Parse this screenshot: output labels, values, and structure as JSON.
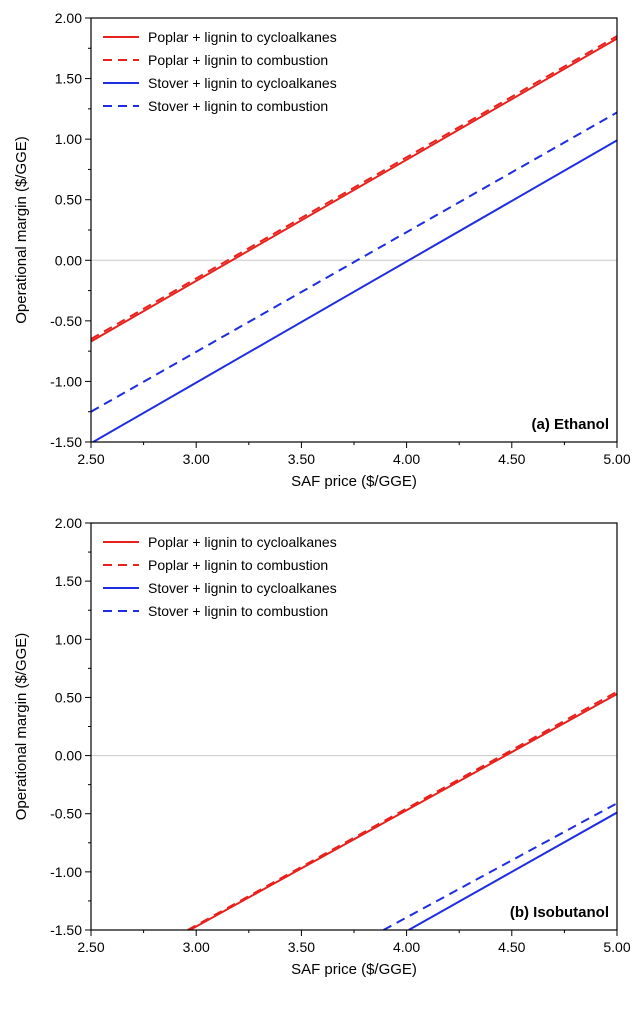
{
  "chart_data": [
    {
      "type": "line",
      "panel_label": "(a) Ethanol",
      "xlabel": "SAF price ($/GGE)",
      "ylabel": "Operational margin ($/GGE)",
      "xlim": [
        2.5,
        5.0
      ],
      "ylim": [
        -1.5,
        2.0
      ],
      "xticks": [
        "2.50",
        "3.00",
        "3.50",
        "4.00",
        "4.50",
        "5.00"
      ],
      "yticks": [
        "-1.50",
        "-1.00",
        "-0.50",
        "0.00",
        "0.50",
        "1.00",
        "1.50",
        "2.00"
      ],
      "zero_line": true,
      "legend_position": "top-left",
      "series": [
        {
          "name": "Poplar + lignin to cycloalkanes",
          "color": "#e8211c",
          "dash": "solid",
          "x": [
            2.5,
            5.0
          ],
          "y": [
            -0.67,
            1.83
          ]
        },
        {
          "name": "Poplar + lignin to combustion",
          "color": "#e8211c",
          "dash": "dashed",
          "x": [
            2.5,
            5.0
          ],
          "y": [
            -0.65,
            1.85
          ]
        },
        {
          "name": "Stover + lignin to cycloalkanes",
          "color": "#1f2de0",
          "dash": "solid",
          "x": [
            2.5,
            5.0
          ],
          "y": [
            -1.51,
            0.99
          ]
        },
        {
          "name": "Stover + lignin to combustion",
          "color": "#1f2de0",
          "dash": "dashed",
          "x": [
            2.5,
            5.0
          ],
          "y": [
            -1.25,
            1.22
          ]
        }
      ]
    },
    {
      "type": "line",
      "panel_label": "(b) Isobutanol",
      "xlabel": "SAF price ($/GGE)",
      "ylabel": "Operational margin ($/GGE)",
      "xlim": [
        2.5,
        5.0
      ],
      "ylim": [
        -1.5,
        2.0
      ],
      "xticks": [
        "2.50",
        "3.00",
        "3.50",
        "4.00",
        "4.50",
        "5.00"
      ],
      "yticks": [
        "-1.50",
        "-1.00",
        "-0.50",
        "0.00",
        "0.50",
        "1.00",
        "1.50",
        "2.00"
      ],
      "zero_line": true,
      "legend_position": "top-left",
      "series": [
        {
          "name": "Poplar + lignin to cycloalkanes",
          "color": "#e8211c",
          "dash": "solid",
          "x": [
            2.97,
            5.0
          ],
          "y": [
            -1.5,
            0.53
          ]
        },
        {
          "name": "Poplar + lignin to combustion",
          "color": "#e8211c",
          "dash": "dashed",
          "x": [
            2.96,
            5.0
          ],
          "y": [
            -1.5,
            0.55
          ]
        },
        {
          "name": "Stover + lignin to cycloalkanes",
          "color": "#1f2de0",
          "dash": "solid",
          "x": [
            4.01,
            5.0
          ],
          "y": [
            -1.5,
            -0.49
          ]
        },
        {
          "name": "Stover + lignin to combustion",
          "color": "#1f2de0",
          "dash": "dashed",
          "x": [
            3.89,
            5.0
          ],
          "y": [
            -1.5,
            -0.41
          ]
        }
      ]
    }
  ]
}
